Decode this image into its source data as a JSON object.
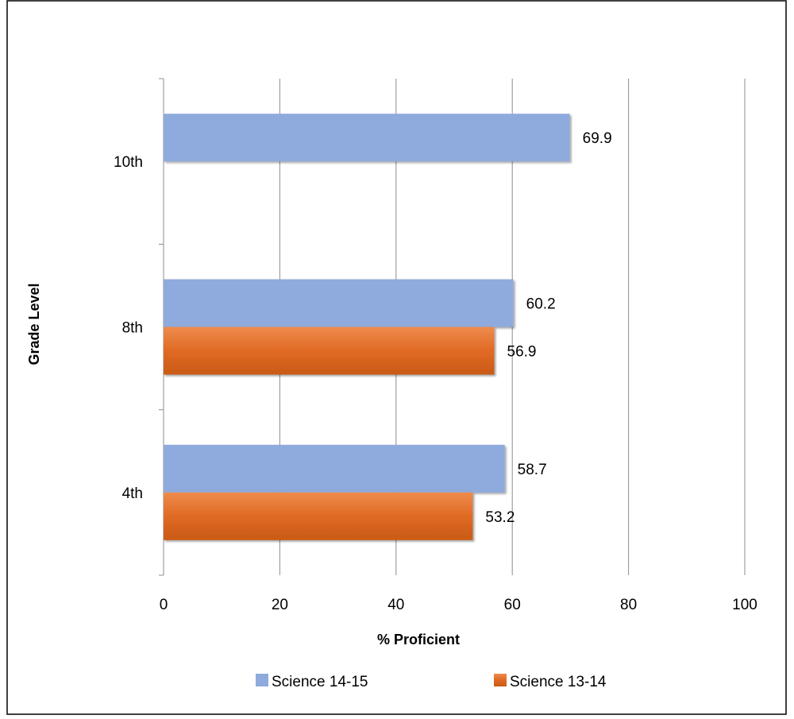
{
  "chart_data": {
    "type": "bar",
    "orientation": "horizontal",
    "categories": [
      "4th",
      "8th",
      "10th"
    ],
    "series": [
      {
        "name": "Science 14-15",
        "values": [
          58.7,
          60.2,
          69.9
        ],
        "color": "#8faadc"
      },
      {
        "name": "Science 13-14",
        "values": [
          53.2,
          56.9,
          null
        ],
        "color": "#e06a24"
      }
    ],
    "data_labels": [
      [
        "58.7",
        "60.2",
        "69.9"
      ],
      [
        "53.2",
        "56.9",
        ""
      ]
    ],
    "xlabel": "% Proficient",
    "ylabel": "Grade Level",
    "xlim": [
      0,
      100
    ],
    "x_ticks": [
      0,
      20,
      40,
      60,
      80,
      100
    ],
    "x_tick_labels": [
      "0",
      "20",
      "40",
      "60",
      "80",
      "100"
    ],
    "grid": "vertical",
    "legend_position": "bottom"
  }
}
